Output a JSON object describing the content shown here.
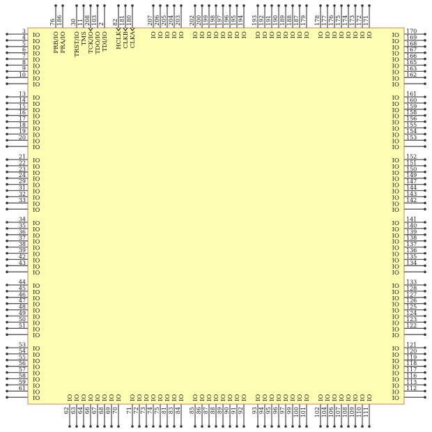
{
  "colors": {
    "body_fill": "#ffffb4",
    "body_border": "#d8ac8c",
    "pin_line": "#555555"
  },
  "top": [
    [
      {
        "n": "76",
        "l": "PRB/IO"
      },
      {
        "n": "186",
        "l": "PRA/IO"
      }
    ],
    [
      {
        "n": "30",
        "l": "TRST/IO"
      },
      {
        "n": "11",
        "l": "TMS"
      },
      {
        "n": "208",
        "l": "TCK/IO",
        "arrow": true
      },
      {
        "n": "103",
        "l": "TDO/IO"
      },
      {
        "n": "2",
        "l": "TDI/IO"
      }
    ],
    [
      {
        "n": "82",
        "l": "HCLK",
        "arrow": true
      },
      {
        "n": "181",
        "l": "CLKB",
        "arrow": true
      },
      {
        "n": "180",
        "l": "CLKA",
        "arrow": true
      }
    ],
    [
      {
        "n": "207",
        "l": "IO"
      },
      {
        "n": "206",
        "l": "IO"
      },
      {
        "n": "205",
        "l": "IO"
      },
      {
        "n": "204",
        "l": "IO"
      },
      {
        "n": "203",
        "l": "IO"
      }
    ],
    [
      {
        "n": "202",
        "l": "IO"
      },
      {
        "n": "200",
        "l": "IO"
      },
      {
        "n": "199",
        "l": "IO"
      },
      {
        "n": "198",
        "l": "IO"
      },
      {
        "n": "197",
        "l": "IO"
      },
      {
        "n": "196",
        "l": "IO"
      },
      {
        "n": "195",
        "l": "IO"
      },
      {
        "n": "194",
        "l": "IO"
      }
    ],
    [
      {
        "n": "193",
        "l": "IO"
      },
      {
        "n": "192",
        "l": "IO"
      },
      {
        "n": "191",
        "l": "IO"
      },
      {
        "n": "190",
        "l": "IO"
      },
      {
        "n": "189",
        "l": "IO"
      },
      {
        "n": "188",
        "l": "IO"
      },
      {
        "n": "187",
        "l": "IO"
      },
      {
        "n": "179",
        "l": "IO"
      }
    ],
    [
      {
        "n": "178",
        "l": "IO"
      },
      {
        "n": "177",
        "l": "IO"
      },
      {
        "n": "176",
        "l": "IO"
      },
      {
        "n": "175",
        "l": "IO"
      },
      {
        "n": "174",
        "l": "IO"
      },
      {
        "n": "173",
        "l": "IO"
      },
      {
        "n": "172",
        "l": "IO"
      },
      {
        "n": "171",
        "l": "IO"
      }
    ]
  ],
  "left": [
    [
      "3",
      "4",
      "5",
      "6",
      "7",
      "8",
      "9",
      "10"
    ],
    [
      "13",
      "14",
      "15",
      "16",
      "17",
      "18",
      "19",
      "20"
    ],
    [
      "21",
      "22",
      "23",
      "24",
      "29",
      "31",
      "32",
      "33"
    ],
    [
      "34",
      "35",
      "36",
      "37",
      "38",
      "39",
      "42",
      "43"
    ],
    [
      "44",
      "45",
      "46",
      "47",
      "48",
      "49",
      "50",
      "51"
    ],
    [
      "53",
      "54",
      "55",
      "56",
      "57",
      "58",
      "59",
      "61"
    ]
  ],
  "right": [
    [
      "170",
      "169",
      "168",
      "167",
      "166",
      "165",
      "163",
      "162"
    ],
    [
      "161",
      "160",
      "159",
      "158",
      "156",
      "155",
      "154",
      "153"
    ],
    [
      "152",
      "151",
      "150",
      "149",
      "147",
      "144",
      "143",
      "142"
    ],
    [
      "141",
      "140",
      "139",
      "138",
      "137",
      "136",
      "135",
      "134"
    ],
    [
      "133",
      "128",
      "127",
      "126",
      "125",
      "124",
      "123",
      "122"
    ],
    [
      "121",
      "120",
      "119",
      "118",
      "117",
      "116",
      "113",
      "112"
    ]
  ],
  "bottom": [
    [
      "62",
      "63",
      "64",
      "66",
      "67",
      "68",
      "69",
      "70"
    ],
    [
      "71",
      "72",
      "73",
      "74",
      "75",
      "81",
      "83",
      "84"
    ],
    [
      "85",
      "86",
      "87",
      "88",
      "89",
      "90",
      "91",
      "92"
    ],
    [
      "93",
      "94",
      "95",
      "96",
      "97",
      "99",
      "100",
      "101"
    ],
    [
      "102",
      "104",
      "106",
      "107",
      "108",
      "109",
      "110",
      "111"
    ]
  ],
  "side_label": "IO"
}
